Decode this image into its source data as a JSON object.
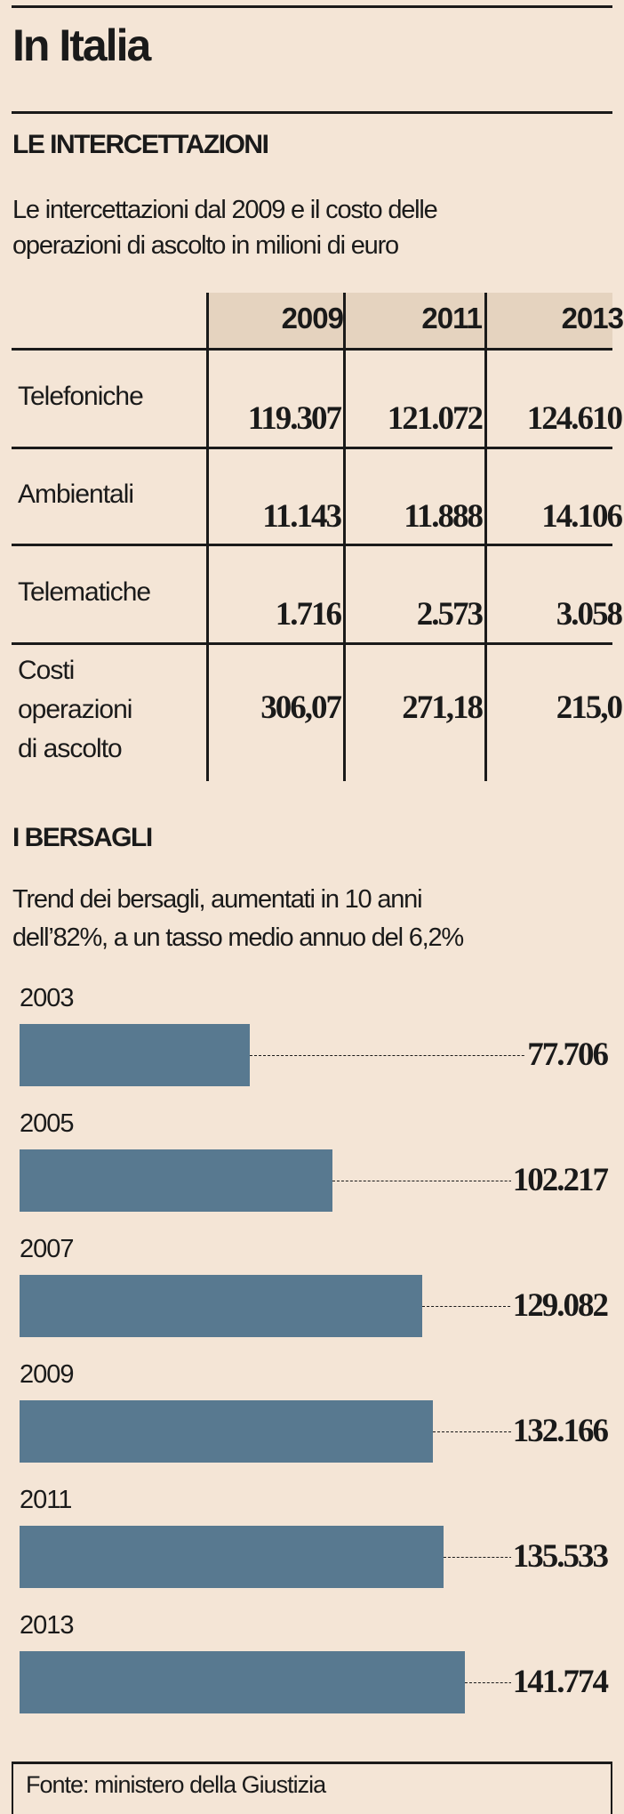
{
  "title": "In Italia",
  "section1": {
    "heading": "LE INTERCETTAZIONI",
    "subtitle_lines": [
      "Le intercettazioni dal 2009 e il costo delle",
      "operazioni di ascolto in milioni di euro"
    ],
    "columns": [
      "2009",
      "2011",
      "2013"
    ],
    "rows": [
      {
        "label": "Telefoniche",
        "values": [
          "119.307",
          "121.072",
          "124.610"
        ]
      },
      {
        "label": "Ambientali",
        "values": [
          "11.143",
          "11.888",
          "14.106"
        ]
      },
      {
        "label": "Telematiche",
        "values": [
          "1.716",
          "2.573",
          "3.058"
        ]
      },
      {
        "label_lines": [
          "Costi",
          "operazioni",
          "di ascolto"
        ],
        "values": [
          "306,07",
          "271,18",
          "215,0"
        ]
      }
    ]
  },
  "section2": {
    "heading": "I BERSAGLI",
    "subtitle_lines": [
      "Trend dei bersagli, aumentati in 10 anni",
      "dell’82%, a un tasso medio annuo del 6,2%"
    ]
  },
  "chart_data": {
    "type": "bar",
    "orientation": "horizontal",
    "title": "I BERSAGLI",
    "categories": [
      "2003",
      "2005",
      "2007",
      "2009",
      "2011",
      "2013"
    ],
    "values": [
      77706,
      102217,
      129082,
      132166,
      135533,
      141774
    ],
    "labels": [
      "77.706",
      "102.217",
      "129.082",
      "132.166",
      "135.533",
      "141.774"
    ],
    "bar_color": "#587990"
  },
  "source": "Fonte: ministero della Giustizia",
  "colors": {
    "background": "#f4e5d6",
    "header": "#e5d3bf",
    "bar": "#587990"
  }
}
